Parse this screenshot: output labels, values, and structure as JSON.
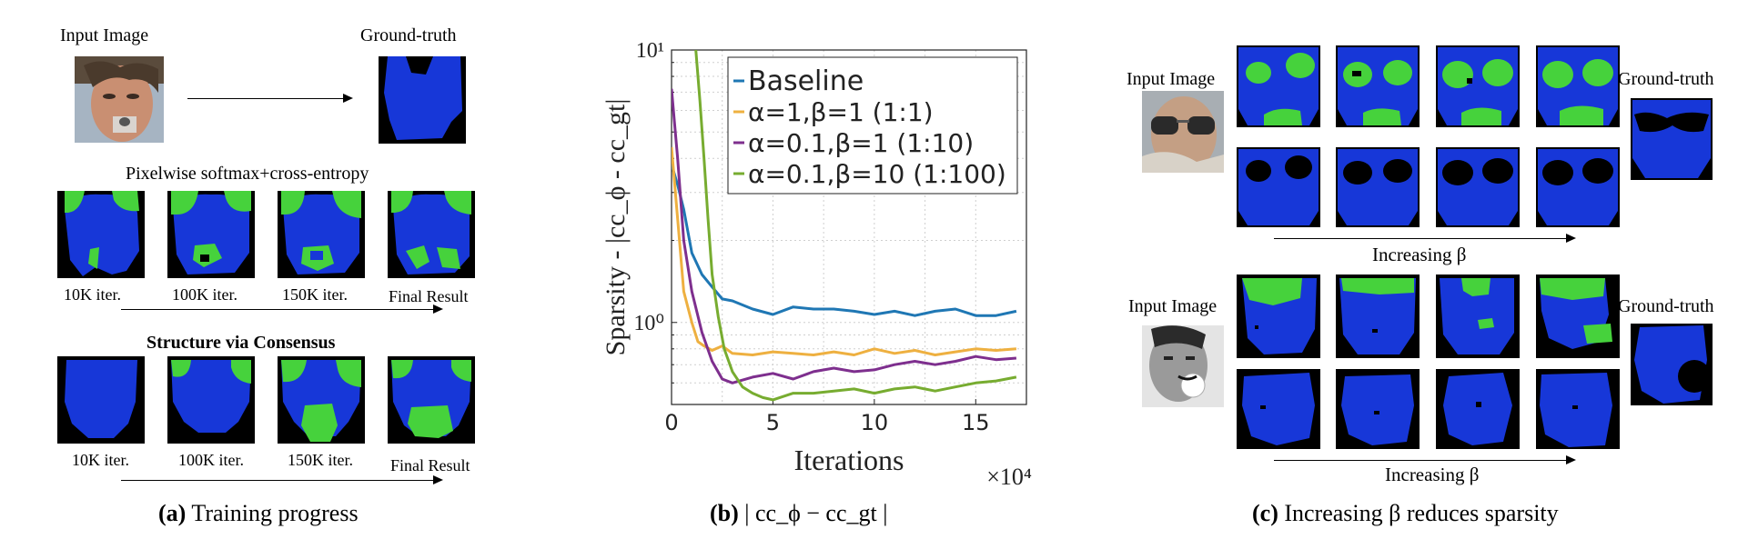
{
  "panel_a": {
    "input_label": "Input Image",
    "gt_label": "Ground-truth",
    "row1_title": "Pixelwise softmax+cross-entropy",
    "row1_labels": [
      "10K iter.",
      "100K iter.",
      "150K iter.",
      "Final Result"
    ],
    "row2_title": "Structure via Consensus",
    "row2_labels": [
      "10K iter.",
      "100K iter.",
      "150K iter.",
      "Final Result"
    ],
    "caption_letter": "(a)",
    "caption_text": "Training progress"
  },
  "panel_c": {
    "input_label_top": "Input Image",
    "gt_label_top": "Ground-truth",
    "input_label_bottom": "Input Image",
    "gt_label_bottom": "Ground-truth",
    "arrow_label_top": "Increasing  β",
    "arrow_label_bottom": "Increasing  β",
    "caption_letter": "(c)",
    "caption_text": "Increasing β reduces sparsity"
  },
  "panel_b": {
    "caption_letter": "(b)",
    "caption_text": "| cc_ϕ − cc_gt |",
    "xlabel": "Iterations",
    "ylabel": "Sparsity - |cc_ϕ - cc_gt|",
    "x_multiplier": "×10⁴",
    "xticks": [
      "0",
      "5",
      "10",
      "15"
    ],
    "yticks": [
      "10⁰",
      "10¹"
    ]
  },
  "colors": {
    "blue_mask": "#1737d8",
    "green_mask": "#46d23c",
    "baseline": "#1f77b4",
    "s11": "#eeb040",
    "s110": "#7e2f8e",
    "s1100": "#77ac30"
  },
  "chart_data": {
    "type": "line",
    "title": "",
    "xlabel": "Iterations",
    "ylabel": "Sparsity - |cc_ϕ - cc_gt|",
    "x_scale_note": "×10^4",
    "xlim": [
      0,
      17.5
    ],
    "ylim": [
      0.5,
      10
    ],
    "yscale": "log",
    "legend_position": "top-right",
    "series": [
      {
        "name": "Baseline",
        "color": "#1f77b4",
        "x": [
          0,
          0.3,
          0.6,
          1.0,
          1.5,
          2.0,
          2.5,
          3.0,
          4.0,
          5.0,
          6.0,
          7.0,
          8.0,
          9.0,
          10.0,
          11.0,
          12.0,
          13.0,
          14.0,
          15.0,
          16.0,
          17.0
        ],
        "y": [
          3.8,
          3.2,
          2.6,
          1.8,
          1.5,
          1.35,
          1.22,
          1.2,
          1.12,
          1.07,
          1.14,
          1.12,
          1.12,
          1.1,
          1.07,
          1.1,
          1.06,
          1.1,
          1.12,
          1.06,
          1.06,
          1.1
        ]
      },
      {
        "name": "α=1,β=1 (1:1)",
        "color": "#eeb040",
        "x": [
          0,
          0.3,
          0.6,
          1.0,
          1.3,
          1.6,
          2.0,
          2.5,
          3.0,
          4.0,
          5.0,
          6.0,
          7.0,
          8.0,
          9.0,
          10.0,
          11.0,
          12.0,
          13.0,
          14.0,
          15.0,
          16.0,
          17.0
        ],
        "y": [
          4.4,
          2.4,
          1.3,
          1.0,
          0.85,
          0.82,
          0.79,
          0.82,
          0.77,
          0.76,
          0.78,
          0.77,
          0.76,
          0.78,
          0.76,
          0.8,
          0.77,
          0.79,
          0.76,
          0.78,
          0.8,
          0.79,
          0.8
        ]
      },
      {
        "name": "α=0.1,β=1 (1:10)",
        "color": "#7e2f8e",
        "x": [
          0,
          0.3,
          0.6,
          1.0,
          1.5,
          2.0,
          2.5,
          3.0,
          4.0,
          5.0,
          6.0,
          7.0,
          8.0,
          9.0,
          10.0,
          11.0,
          12.0,
          13.0,
          14.0,
          15.0,
          16.0,
          17.0
        ],
        "y": [
          7.2,
          4.0,
          2.0,
          1.3,
          0.92,
          0.72,
          0.62,
          0.6,
          0.63,
          0.65,
          0.62,
          0.66,
          0.68,
          0.66,
          0.67,
          0.7,
          0.72,
          0.7,
          0.72,
          0.75,
          0.73,
          0.74
        ]
      },
      {
        "name": "α=0.1,β=10 (1:100)",
        "color": "#77ac30",
        "x": [
          1.2,
          1.4,
          1.6,
          1.8,
          2.0,
          2.3,
          2.6,
          3.0,
          3.5,
          4.0,
          4.5,
          5.0,
          6.0,
          7.0,
          8.0,
          9.0,
          10.0,
          11.0,
          12.0,
          13.0,
          14.0,
          15.0,
          16.0,
          17.0
        ],
        "y": [
          10,
          6.5,
          4.0,
          2.4,
          1.5,
          1.05,
          0.8,
          0.66,
          0.58,
          0.55,
          0.53,
          0.52,
          0.55,
          0.55,
          0.56,
          0.57,
          0.55,
          0.57,
          0.58,
          0.56,
          0.58,
          0.6,
          0.61,
          0.63
        ]
      }
    ]
  }
}
